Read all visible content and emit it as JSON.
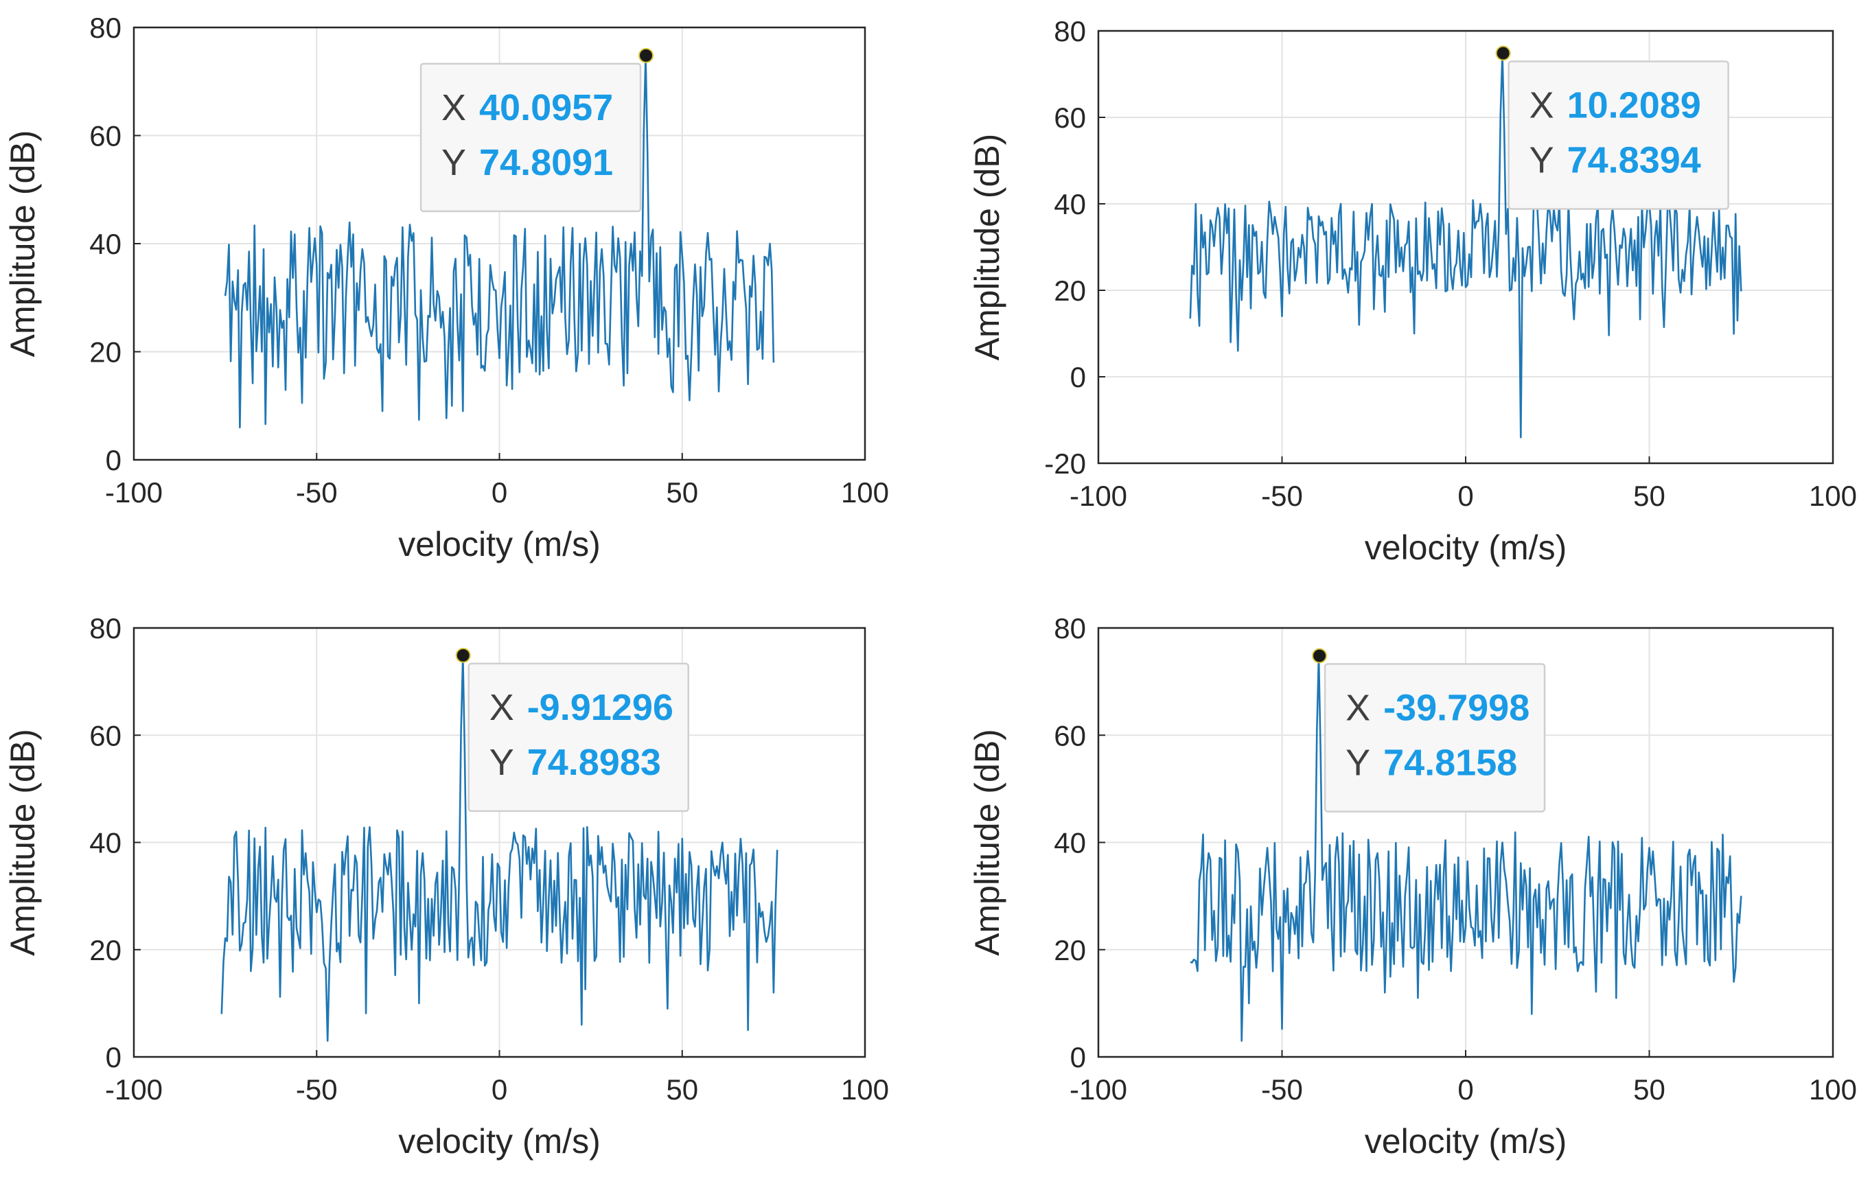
{
  "colors": {
    "line": "#1f77b4",
    "datatip_value": "#1a9be6",
    "grid": "#e3e3e3",
    "axis": "#262626",
    "marker": "#1a1a1a"
  },
  "chart_data": [
    {
      "type": "line",
      "xlabel": "velocity (m/s)",
      "ylabel": "Amplitude (dB)",
      "xlim": [
        -100,
        100
      ],
      "ylim": [
        0,
        80
      ],
      "xticks": [
        -100,
        -50,
        0,
        50,
        100
      ],
      "yticks": [
        0,
        20,
        40,
        60,
        80
      ],
      "grid": true,
      "x_range": [
        -75,
        75
      ],
      "datatip": {
        "x_key": "X",
        "x_value": "40.0957",
        "y_key": "Y",
        "y_value": "74.8091",
        "x": 40.0957,
        "y": 74.8091,
        "placement": "left"
      },
      "noise": {
        "seed": 11,
        "mean": 30,
        "spread": 14
      },
      "dips": [
        [
          -71,
          6
        ],
        [
          -32,
          9
        ],
        [
          -10,
          9
        ],
        [
          -13,
          10
        ],
        [
          52,
          11
        ],
        [
          68,
          14
        ],
        [
          -48,
          15
        ],
        [
          -5,
          17
        ],
        [
          75,
          18
        ]
      ],
      "humps": [
        [
          -50.5,
          41
        ],
        [
          -37.5,
          39
        ],
        [
          23.5,
          41
        ],
        [
          28,
          39
        ],
        [
          57,
          42
        ],
        [
          74,
          40
        ],
        [
          36,
          40
        ]
      ]
    },
    {
      "type": "line",
      "xlabel": "velocity (m/s)",
      "ylabel": "Amplitude (dB)",
      "xlim": [
        -100,
        100
      ],
      "ylim": [
        -20,
        80
      ],
      "xticks": [
        -100,
        -50,
        0,
        50,
        100
      ],
      "yticks": [
        -20,
        0,
        20,
        40,
        60,
        80
      ],
      "grid": true,
      "x_range": [
        -75,
        75
      ],
      "datatip": {
        "x_key": "X",
        "x_value": "10.2089",
        "y_key": "Y",
        "y_value": "74.8394",
        "x": 10.2089,
        "y": 74.8394,
        "placement": "right"
      },
      "noise": {
        "seed": 23,
        "mean": 30,
        "spread": 11
      },
      "dips": [
        [
          15,
          -14
        ],
        [
          -62,
          6
        ],
        [
          -64,
          8
        ],
        [
          -29,
          12
        ],
        [
          -22,
          15
        ],
        [
          -14,
          10
        ],
        [
          74,
          13
        ],
        [
          -50,
          14
        ]
      ],
      "humps": [
        [
          -52,
          37
        ],
        [
          -20,
          38
        ],
        [
          40,
          39
        ],
        [
          50,
          40
        ],
        [
          63,
          37
        ],
        [
          4,
          40
        ],
        [
          -42,
          37
        ]
      ]
    },
    {
      "type": "line",
      "xlabel": "velocity (m/s)",
      "ylabel": "Amplitude (dB)",
      "xlim": [
        -100,
        100
      ],
      "ylim": [
        0,
        80
      ],
      "xticks": [
        -100,
        -50,
        0,
        50,
        100
      ],
      "yticks": [
        0,
        20,
        40,
        60,
        80
      ],
      "grid": true,
      "x_range": [
        -76,
        76
      ],
      "datatip": {
        "x_key": "X",
        "x_value": "-9.91296",
        "y_key": "Y",
        "y_value": "74.8983",
        "x": -9.91296,
        "y": 74.8983,
        "placement": "right"
      },
      "noise": {
        "seed": 37,
        "mean": 30,
        "spread": 13
      },
      "dips": [
        [
          -76,
          8
        ],
        [
          -47,
          3
        ],
        [
          -68,
          16
        ],
        [
          22.5,
          6
        ],
        [
          46,
          9
        ],
        [
          68,
          5
        ],
        [
          75,
          12
        ],
        [
          -22,
          10
        ],
        [
          -5,
          18
        ]
      ],
      "humps": [
        [
          -53,
          38
        ],
        [
          -42,
          38
        ],
        [
          -21,
          38
        ],
        [
          7,
          41
        ],
        [
          36,
          41
        ],
        [
          61,
          40
        ],
        [
          -30,
          38
        ]
      ]
    },
    {
      "type": "line",
      "xlabel": "velocity (m/s)",
      "ylabel": "Amplitude (dB)",
      "xlim": [
        -100,
        100
      ],
      "ylim": [
        0,
        80
      ],
      "xticks": [
        -100,
        -50,
        0,
        50,
        100
      ],
      "yticks": [
        0,
        20,
        40,
        60,
        80
      ],
      "grid": true,
      "x_range": [
        -75,
        75
      ],
      "datatip": {
        "x_key": "X",
        "x_value": "-39.7998",
        "y_key": "Y",
        "y_value": "74.8158",
        "x": -39.7998,
        "y": 74.8158,
        "placement": "right"
      },
      "noise": {
        "seed": 53,
        "mean": 29,
        "spread": 13
      },
      "dips": [
        [
          -61,
          3
        ],
        [
          -59,
          10
        ],
        [
          -73,
          16
        ],
        [
          -22,
          12
        ],
        [
          -13,
          11
        ],
        [
          18,
          8
        ],
        [
          41,
          11
        ],
        [
          73,
          14
        ],
        [
          -4,
          16
        ]
      ],
      "humps": [
        [
          -70,
          38
        ],
        [
          -54,
          39
        ],
        [
          -35,
          41
        ],
        [
          -24,
          38
        ],
        [
          10,
          40
        ],
        [
          50,
          39
        ],
        [
          62,
          36
        ]
      ]
    }
  ]
}
